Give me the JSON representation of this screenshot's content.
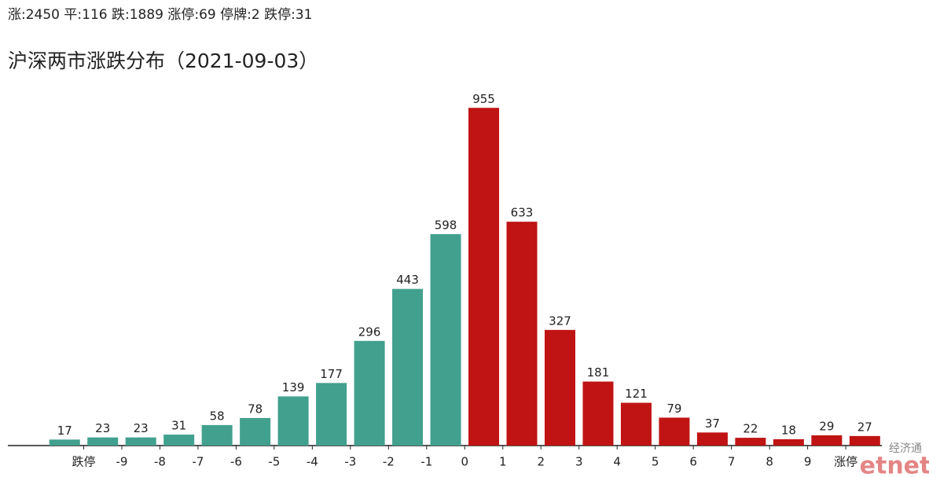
{
  "chart_data": {
    "type": "bar",
    "summary": "涨:2450 平:116 跌:1889 涨停:69 停牌:2 跌停:31",
    "title": "沪深两市涨跌分布（2021-09-03）",
    "series": [
      {
        "color": "#42a08e",
        "values": [
          17,
          23,
          23,
          31,
          58,
          78,
          139,
          177,
          296,
          443,
          598
        ]
      },
      {
        "color": "#c01414",
        "values": [
          955,
          633,
          327,
          181,
          121,
          79,
          37,
          22,
          18,
          29,
          27
        ]
      }
    ],
    "xtick_labels": [
      "跌停",
      "-9",
      "-8",
      "-7",
      "-6",
      "-5",
      "-4",
      "-3",
      "-2",
      "-1",
      "0",
      "1",
      "2",
      "3",
      "4",
      "5",
      "6",
      "7",
      "8",
      "9",
      "涨停"
    ],
    "ylim": [
      0,
      1000
    ],
    "watermark": [
      "经济通",
      "etnet"
    ]
  }
}
